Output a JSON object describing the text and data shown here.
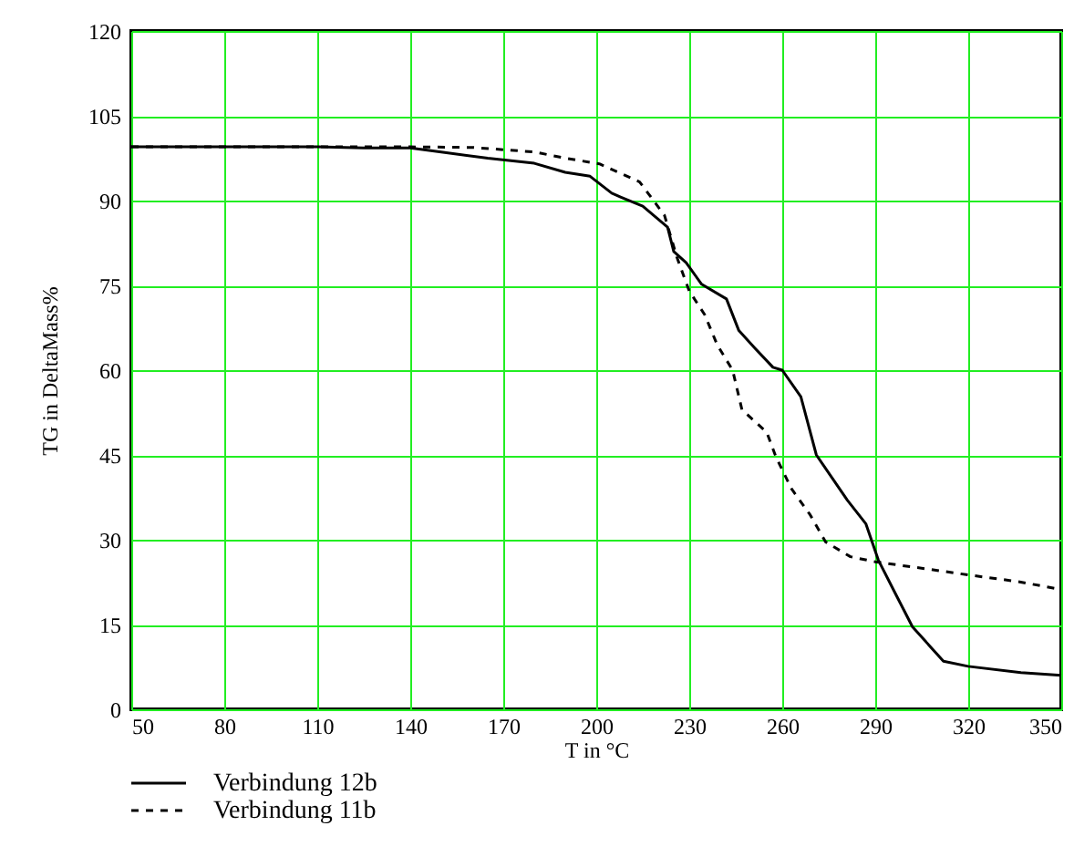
{
  "chart_data": {
    "type": "line",
    "xlabel": "T in °C",
    "ylabel": "TG in DeltaMass%",
    "xlim": [
      50,
      350
    ],
    "xticks": [
      50,
      80,
      110,
      140,
      170,
      200,
      230,
      260,
      290,
      320,
      350
    ],
    "ylim": [
      0,
      120
    ],
    "yticks": [
      0,
      15,
      30,
      45,
      60,
      75,
      90,
      105,
      120
    ],
    "grid": true,
    "legend": "bottom",
    "marker": "none",
    "series": [
      {
        "name": "Verbindung 12b",
        "color": "#000000",
        "line_style": "solid",
        "x": [
          50,
          80,
          110,
          125,
          140,
          150,
          165,
          180,
          190,
          198,
          205,
          208,
          215,
          223,
          225,
          229,
          234,
          242,
          246,
          251,
          257,
          260,
          266,
          271,
          281,
          287,
          291,
          296,
          302,
          312,
          320,
          337,
          350
        ],
        "values": [
          99.5,
          99.5,
          99.5,
          99.3,
          99.3,
          98.6,
          97.5,
          96.6,
          95,
          94.3,
          91.3,
          90.6,
          89,
          85.3,
          81,
          79,
          75.2,
          72.6,
          67,
          64,
          60.5,
          60,
          55.3,
          45,
          37,
          32.8,
          26.4,
          21,
          14.6,
          8.5,
          7.6,
          6.5,
          6
        ]
      },
      {
        "name": "Verbindung 11b",
        "color": "#000000",
        "line_style": "dashed",
        "x": [
          50,
          80,
          110,
          140,
          160,
          180,
          190,
          201,
          214,
          222,
          226,
          230,
          235,
          239,
          244,
          247,
          255,
          258,
          263,
          269,
          274,
          282,
          290,
          307,
          321,
          336,
          350
        ],
        "values": [
          99.5,
          99.5,
          99.5,
          99.5,
          99.4,
          98.6,
          97.5,
          96.5,
          93.3,
          87.4,
          80,
          74,
          69.8,
          64.5,
          60,
          53,
          49,
          44.6,
          39,
          34.4,
          29.6,
          27,
          26.1,
          24.8,
          23.7,
          22.6,
          21.2
        ]
      }
    ]
  }
}
